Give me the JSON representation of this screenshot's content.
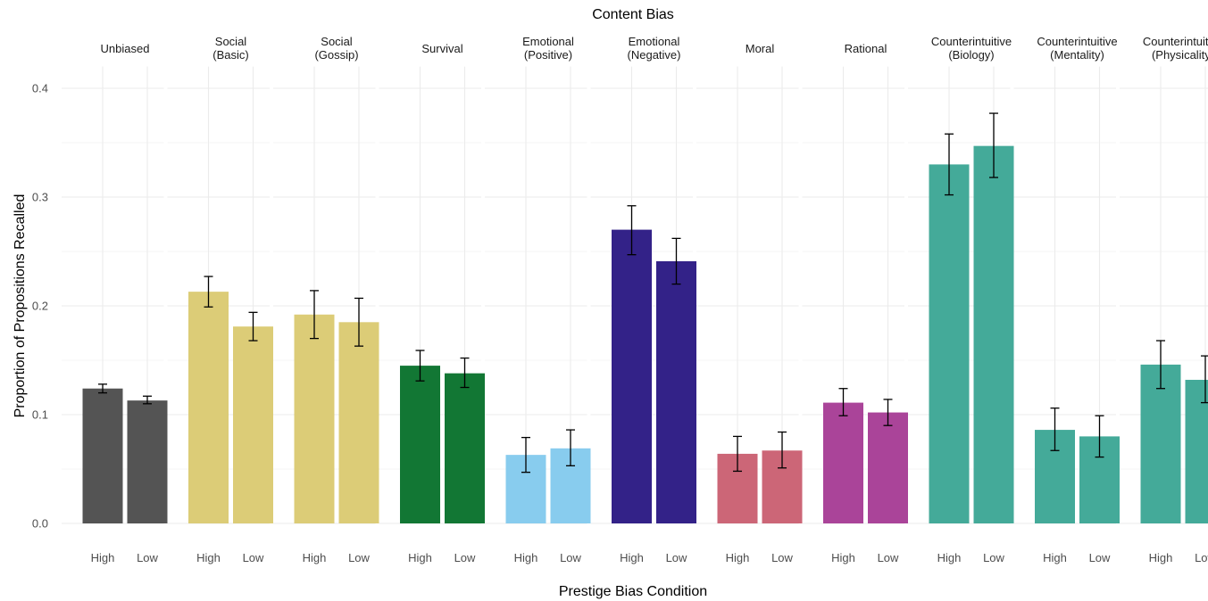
{
  "chart_data": {
    "type": "bar",
    "title": "Content Bias",
    "xlabel": "Prestige Bias Condition",
    "ylabel": "Proportion of Propositions Recalled",
    "ylim": [
      0,
      0.42
    ],
    "y_ticks": [
      "0.0",
      "0.1",
      "0.2",
      "0.3",
      "0.4"
    ],
    "y_tick_values": [
      0,
      0.1,
      0.2,
      0.3,
      0.4
    ],
    "grid": true,
    "conditions": [
      "High",
      "Low"
    ],
    "facets": [
      {
        "label": "Unbiased",
        "color": "#545454",
        "bars": [
          {
            "x": "High",
            "value": 0.124,
            "err_low": 0.12,
            "err_high": 0.128
          },
          {
            "x": "Low",
            "value": 0.113,
            "err_low": 0.11,
            "err_high": 0.117
          }
        ]
      },
      {
        "label": "Social\n(Basic)",
        "color": "#dccc77",
        "bars": [
          {
            "x": "High",
            "value": 0.213,
            "err_low": 0.199,
            "err_high": 0.227
          },
          {
            "x": "Low",
            "value": 0.181,
            "err_low": 0.168,
            "err_high": 0.194
          }
        ]
      },
      {
        "label": "Social\n(Gossip)",
        "color": "#dccc77",
        "bars": [
          {
            "x": "High",
            "value": 0.192,
            "err_low": 0.17,
            "err_high": 0.214
          },
          {
            "x": "Low",
            "value": 0.185,
            "err_low": 0.163,
            "err_high": 0.207
          }
        ]
      },
      {
        "label": "Survival",
        "color": "#127734",
        "bars": [
          {
            "x": "High",
            "value": 0.145,
            "err_low": 0.131,
            "err_high": 0.159
          },
          {
            "x": "Low",
            "value": 0.138,
            "err_low": 0.125,
            "err_high": 0.152
          }
        ]
      },
      {
        "label": "Emotional\n(Positive)",
        "color": "#88ccee",
        "bars": [
          {
            "x": "High",
            "value": 0.063,
            "err_low": 0.047,
            "err_high": 0.079
          },
          {
            "x": "Low",
            "value": 0.069,
            "err_low": 0.053,
            "err_high": 0.086
          }
        ]
      },
      {
        "label": "Emotional\n(Negative)",
        "color": "#332288",
        "bars": [
          {
            "x": "High",
            "value": 0.27,
            "err_low": 0.247,
            "err_high": 0.292
          },
          {
            "x": "Low",
            "value": 0.241,
            "err_low": 0.22,
            "err_high": 0.262
          }
        ]
      },
      {
        "label": "Moral",
        "color": "#cc6677",
        "bars": [
          {
            "x": "High",
            "value": 0.064,
            "err_low": 0.048,
            "err_high": 0.08
          },
          {
            "x": "Low",
            "value": 0.067,
            "err_low": 0.051,
            "err_high": 0.084
          }
        ]
      },
      {
        "label": "Rational",
        "color": "#aa4499",
        "bars": [
          {
            "x": "High",
            "value": 0.111,
            "err_low": 0.099,
            "err_high": 0.124
          },
          {
            "x": "Low",
            "value": 0.102,
            "err_low": 0.09,
            "err_high": 0.114
          }
        ]
      },
      {
        "label": "Counterintuitive\n(Biology)",
        "color": "#44aa99",
        "bars": [
          {
            "x": "High",
            "value": 0.33,
            "err_low": 0.302,
            "err_high": 0.358
          },
          {
            "x": "Low",
            "value": 0.347,
            "err_low": 0.318,
            "err_high": 0.377
          }
        ]
      },
      {
        "label": "Counterintuitive\n(Mentality)",
        "color": "#44aa99",
        "bars": [
          {
            "x": "High",
            "value": 0.086,
            "err_low": 0.067,
            "err_high": 0.106
          },
          {
            "x": "Low",
            "value": 0.08,
            "err_low": 0.061,
            "err_high": 0.099
          }
        ]
      },
      {
        "label": "Counterintuitive\n(Physicality)",
        "color": "#44aa99",
        "bars": [
          {
            "x": "High",
            "value": 0.146,
            "err_low": 0.124,
            "err_high": 0.168
          },
          {
            "x": "Low",
            "value": 0.132,
            "err_low": 0.111,
            "err_high": 0.154
          }
        ]
      }
    ]
  }
}
